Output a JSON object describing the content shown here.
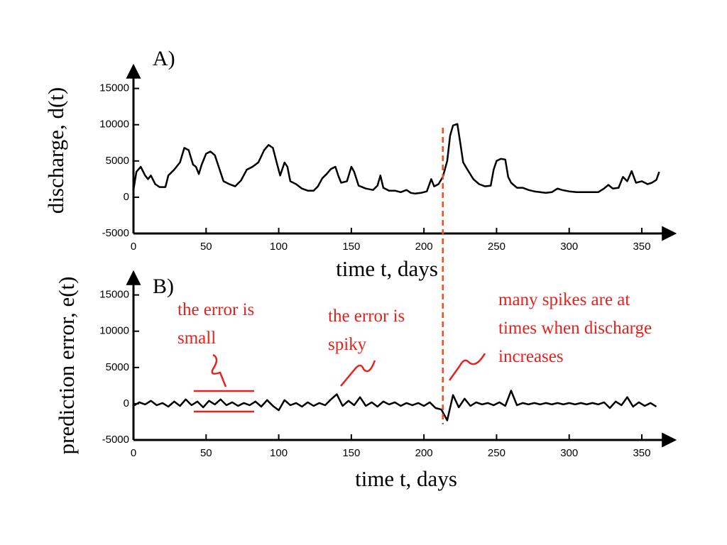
{
  "chart_data": [
    {
      "type": "line",
      "title": "A)",
      "ylabel": "discharge, d(t)",
      "xlabel": "time t, days",
      "xlim": [
        0,
        372
      ],
      "xticks": [
        0,
        50,
        100,
        150,
        200,
        250,
        300,
        350
      ],
      "ylim": [
        -5000,
        18000
      ],
      "yticks": [
        -5000,
        0,
        5000,
        10000,
        15000
      ],
      "vline": {
        "x": 213,
        "color": "#e8501c"
      },
      "series": [
        {
          "color": "#000000",
          "x": [
            0,
            2,
            5,
            8,
            10,
            12,
            15,
            18,
            22,
            24,
            28,
            32,
            35,
            38,
            41,
            43,
            45,
            47,
            50,
            53,
            56,
            59,
            62,
            66,
            70,
            74,
            78,
            82,
            86,
            90,
            93,
            96,
            99,
            101,
            104,
            106,
            108,
            112,
            116,
            120,
            124,
            127,
            130,
            133,
            136,
            139,
            141,
            143,
            147,
            150,
            152,
            155,
            160,
            165,
            168,
            170,
            172,
            176,
            180,
            184,
            188,
            191,
            194,
            198,
            202,
            205,
            207,
            210,
            213,
            216,
            218,
            220,
            223,
            225,
            227,
            230,
            234,
            238,
            242,
            246,
            248,
            250,
            253,
            256,
            258,
            260,
            264,
            268,
            272,
            276,
            280,
            284,
            288,
            292,
            295,
            300,
            305,
            310,
            315,
            320,
            324,
            327,
            330,
            334,
            337,
            340,
            343,
            346,
            350,
            354,
            357,
            360,
            362
          ],
          "values": [
            1000,
            3500,
            4200,
            3000,
            2500,
            3000,
            1800,
            1400,
            1400,
            3000,
            3800,
            4800,
            6800,
            6500,
            4500,
            4200,
            3200,
            4500,
            6000,
            6300,
            5800,
            4000,
            2200,
            1800,
            1500,
            2300,
            3800,
            4200,
            4800,
            6500,
            7200,
            6800,
            4500,
            3000,
            4800,
            4200,
            2200,
            1800,
            1200,
            900,
            900,
            1500,
            2600,
            3200,
            3900,
            4200,
            3000,
            2000,
            2200,
            4200,
            3500,
            1600,
            1200,
            1000,
            1600,
            3000,
            1300,
            900,
            900,
            700,
            1000,
            600,
            500,
            600,
            800,
            2500,
            1500,
            1800,
            2800,
            5000,
            8500,
            9900,
            10100,
            7500,
            4800,
            3800,
            2500,
            1800,
            1500,
            1600,
            3800,
            5000,
            5300,
            5200,
            2800,
            2000,
            1300,
            1300,
            1000,
            800,
            700,
            600,
            700,
            1200,
            1000,
            800,
            700,
            700,
            700,
            700,
            1200,
            1700,
            1200,
            1300,
            2800,
            2200,
            3600,
            2000,
            2200,
            1800,
            2000,
            2400,
            3500
          ]
        }
      ]
    },
    {
      "type": "line",
      "title": "B)",
      "ylabel": "prediction error, e(t)",
      "xlabel": "time t, days",
      "xlim": [
        0,
        372
      ],
      "xticks": [
        0,
        50,
        100,
        150,
        200,
        250,
        300,
        350
      ],
      "ylim": [
        -5000,
        18000
      ],
      "yticks": [
        -5000,
        0,
        5000,
        10000,
        15000
      ],
      "vline": {
        "x": 213,
        "color": "#e8501c"
      },
      "annotations": [
        [
          "the error is",
          "small"
        ],
        [
          "the error is",
          "spiky"
        ],
        [
          "many spikes are at",
          "times when discharge",
          "increases"
        ]
      ],
      "series": [
        {
          "color": "#000000",
          "x": [
            0,
            4,
            8,
            12,
            16,
            20,
            24,
            28,
            32,
            36,
            40,
            44,
            48,
            52,
            56,
            60,
            64,
            68,
            72,
            76,
            80,
            84,
            88,
            92,
            96,
            100,
            104,
            108,
            112,
            116,
            120,
            124,
            128,
            132,
            136,
            140,
            144,
            148,
            152,
            156,
            160,
            164,
            168,
            172,
            176,
            180,
            184,
            188,
            192,
            196,
            200,
            204,
            208,
            212,
            216,
            220,
            224,
            228,
            232,
            236,
            240,
            244,
            248,
            252,
            256,
            260,
            264,
            268,
            272,
            276,
            280,
            284,
            288,
            292,
            296,
            300,
            304,
            308,
            312,
            316,
            320,
            324,
            328,
            332,
            336,
            340,
            344,
            348,
            352,
            356,
            360
          ],
          "values": [
            -300,
            200,
            -100,
            400,
            -200,
            100,
            -400,
            300,
            -300,
            600,
            -200,
            300,
            -500,
            400,
            -100,
            600,
            -200,
            200,
            -300,
            100,
            -200,
            300,
            -400,
            500,
            -300,
            -900,
            500,
            -200,
            100,
            -400,
            200,
            -300,
            100,
            -200,
            600,
            1300,
            -300,
            400,
            -200,
            900,
            -300,
            200,
            -400,
            300,
            -100,
            200,
            -300,
            100,
            -200,
            100,
            -300,
            200,
            -600,
            -800,
            -2300,
            1200,
            -500,
            700,
            -300,
            200,
            -100,
            100,
            -200,
            200,
            -300,
            1800,
            -200,
            100,
            -100,
            100,
            -100,
            100,
            -100,
            100,
            -100,
            100,
            -100,
            100,
            -100,
            100,
            -100,
            200,
            -600,
            300,
            -200,
            900,
            -400,
            200,
            -300,
            100,
            -400
          ]
        }
      ]
    }
  ]
}
